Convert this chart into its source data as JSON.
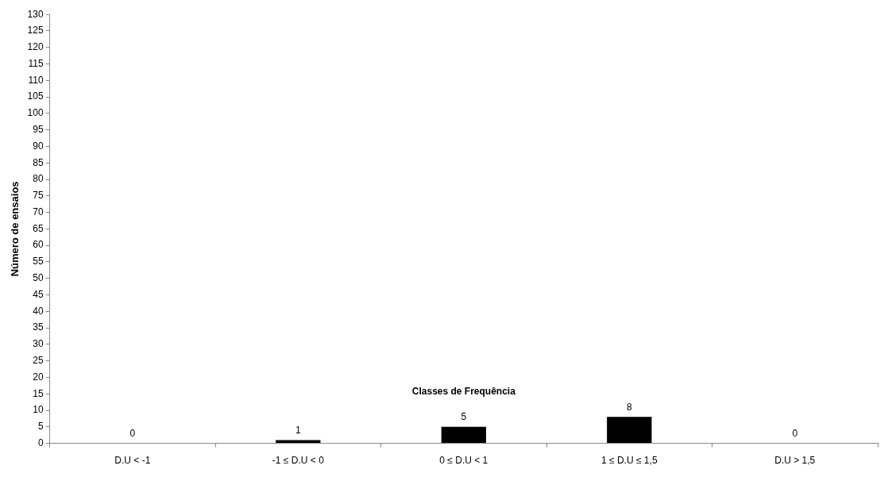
{
  "chart_data": {
    "type": "bar",
    "xlabel": "Classes de Frequência",
    "ylabel": "Número de ensaios",
    "categories": [
      "D.U < -1",
      "-1 ≤ D.U < 0",
      "0 ≤ D.U < 1",
      "1 ≤ D.U ≤ 1,5",
      "D.U > 1,5"
    ],
    "values": [
      0,
      1,
      5,
      8,
      0
    ],
    "color": "#000000",
    "ylim": [
      0,
      130
    ],
    "yticks": [
      0,
      5,
      10,
      15,
      20,
      25,
      30,
      35,
      40,
      45,
      50,
      55,
      60,
      65,
      70,
      75,
      80,
      85,
      90,
      95,
      100,
      105,
      110,
      115,
      120,
      125,
      130
    ],
    "grid": false,
    "legend": false,
    "data_labels": true
  }
}
